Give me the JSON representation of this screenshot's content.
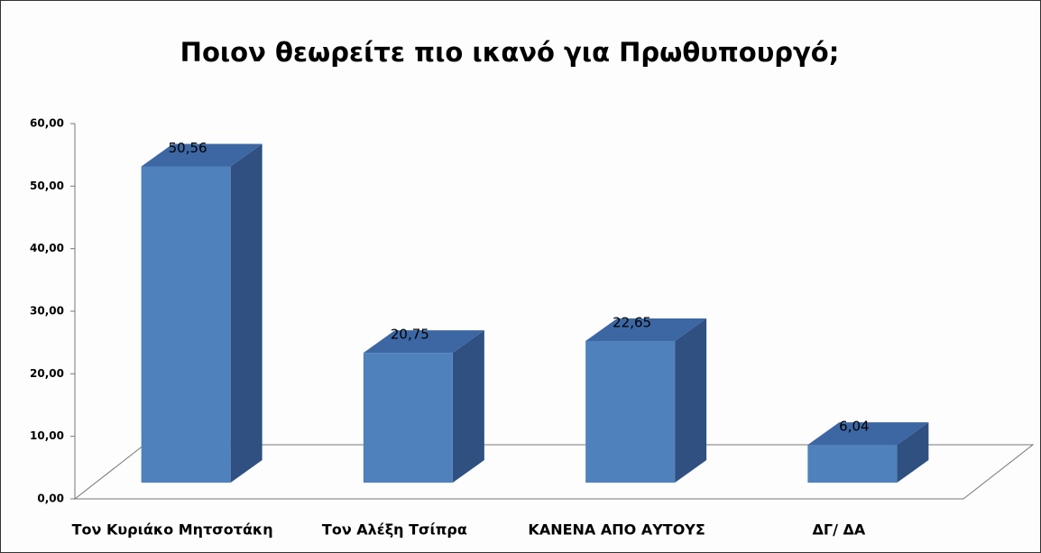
{
  "chart_data": {
    "type": "bar3d",
    "title": "Ποιον θεωρείτε πιο ικανό για Πρωθυπουργό;",
    "categories": [
      "Τον Κυριάκο Μητσοτάκη",
      "Τον Αλέξη Τσίπρα",
      "ΚΑΝΕΝΑ ΑΠΟ ΑΥΤΟΥΣ",
      "ΔΓ/ ΔΑ"
    ],
    "values": [
      50.56,
      20.75,
      22.65,
      6.04
    ],
    "value_labels": [
      "50,56",
      "20,75",
      "22,65",
      "6,04"
    ],
    "color": "#4f81bd",
    "ylim": [
      0,
      60
    ],
    "yticks": [
      {
        "value": 0,
        "label": "0,00"
      },
      {
        "value": 10,
        "label": "10,00"
      },
      {
        "value": 20,
        "label": "20,00"
      },
      {
        "value": 30,
        "label": "30,00"
      },
      {
        "value": 40,
        "label": "40,00"
      },
      {
        "value": 50,
        "label": "50,00"
      },
      {
        "value": 60,
        "label": "60,00"
      }
    ]
  }
}
